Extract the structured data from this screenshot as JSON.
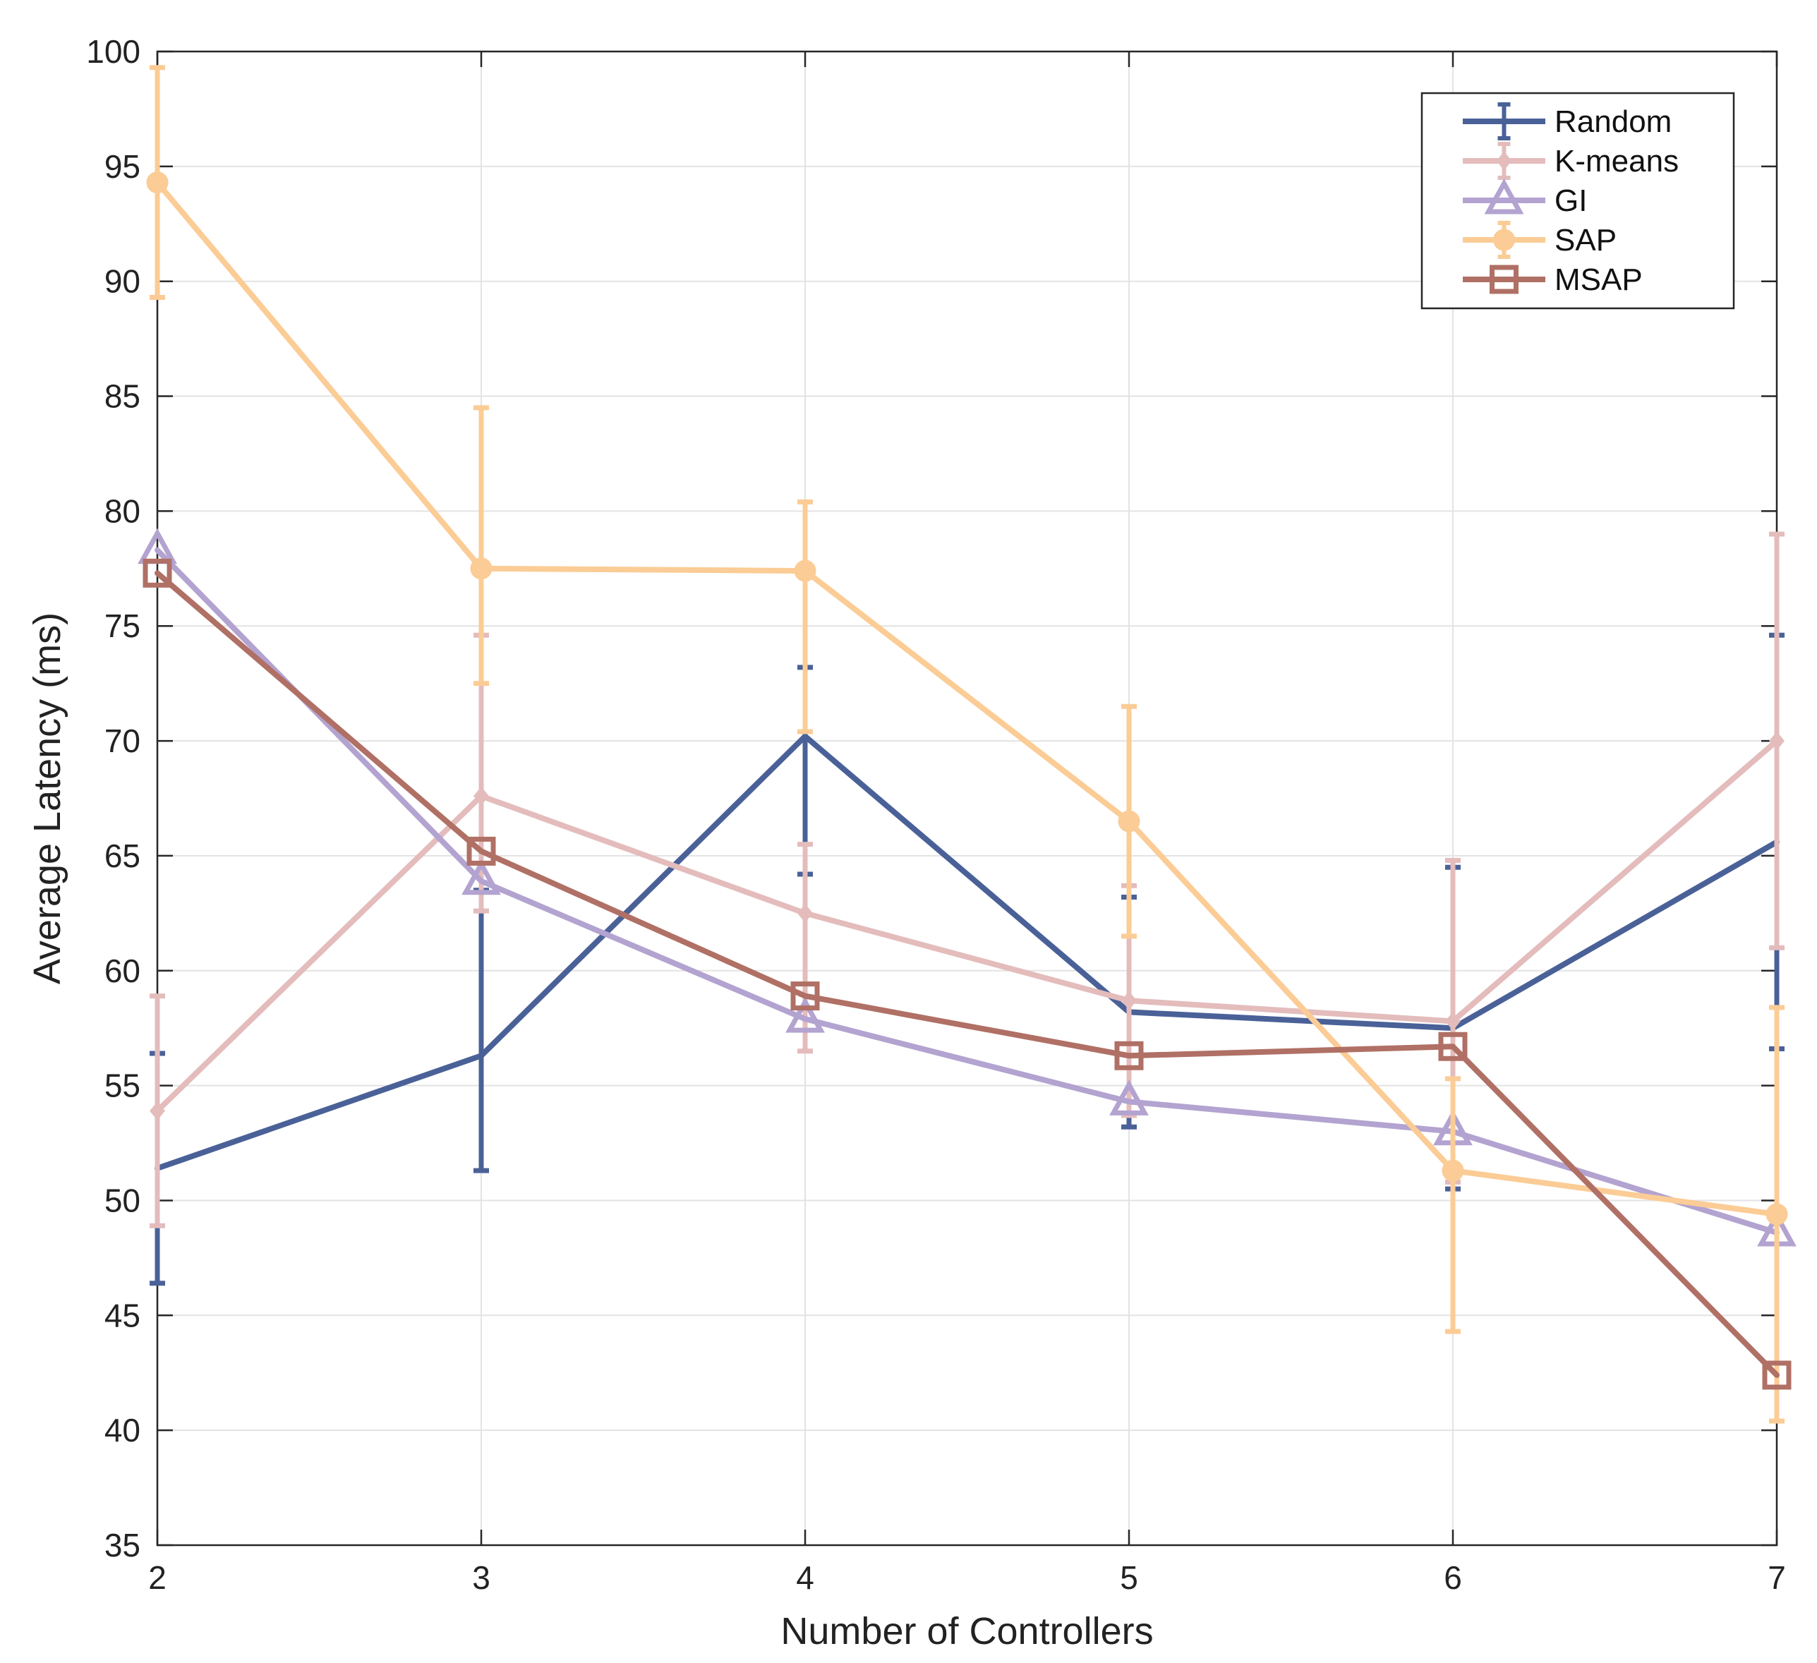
{
  "chart_data": {
    "type": "line",
    "xlabel": "Number of Controllers",
    "ylabel": "Average Latency (ms)",
    "xlim": [
      2,
      7
    ],
    "ylim": [
      35,
      100
    ],
    "x_ticks": [
      2,
      3,
      4,
      5,
      6,
      7
    ],
    "y_ticks": [
      35,
      40,
      45,
      50,
      55,
      60,
      65,
      70,
      75,
      80,
      85,
      90,
      95,
      100
    ],
    "grid": true,
    "legend_position": "top-right",
    "x": [
      2,
      3,
      4,
      5,
      6,
      7
    ],
    "series": [
      {
        "name": "Random",
        "color": "#4a6198",
        "marker": "none",
        "values": [
          51.4,
          56.3,
          70.2,
          58.2,
          57.5,
          65.6
        ],
        "err_low": [
          46.4,
          51.3,
          64.2,
          53.2,
          50.5,
          56.6
        ],
        "err_high": [
          56.4,
          63.5,
          73.2,
          63.2,
          64.5,
          74.6
        ]
      },
      {
        "name": "K-means",
        "color": "#e4bcbc",
        "marker": "diamond",
        "values": [
          53.9,
          67.6,
          62.5,
          58.7,
          57.8,
          70.0
        ],
        "err_low": [
          48.9,
          62.6,
          56.5,
          53.7,
          50.8,
          61.0
        ],
        "err_high": [
          58.9,
          74.6,
          65.5,
          63.7,
          64.8,
          79.0
        ]
      },
      {
        "name": "GI",
        "color": "#b3a3d0",
        "marker": "triangle",
        "values": [
          78.3,
          63.9,
          57.9,
          54.3,
          53.0,
          48.6
        ],
        "err_low": null,
        "err_high": null
      },
      {
        "name": "SAP",
        "color": "#fbcc95",
        "marker": "circle",
        "values": [
          94.3,
          77.5,
          77.4,
          66.5,
          51.3,
          49.4
        ],
        "err_low": [
          89.3,
          72.5,
          70.4,
          61.5,
          44.3,
          40.4
        ],
        "err_high": [
          99.3,
          84.5,
          80.4,
          71.5,
          55.3,
          58.4
        ]
      },
      {
        "name": "MSAP",
        "color": "#b07065",
        "marker": "square",
        "values": [
          77.3,
          65.2,
          58.9,
          56.3,
          56.7,
          42.4
        ],
        "err_low": null,
        "err_high": null
      }
    ]
  }
}
